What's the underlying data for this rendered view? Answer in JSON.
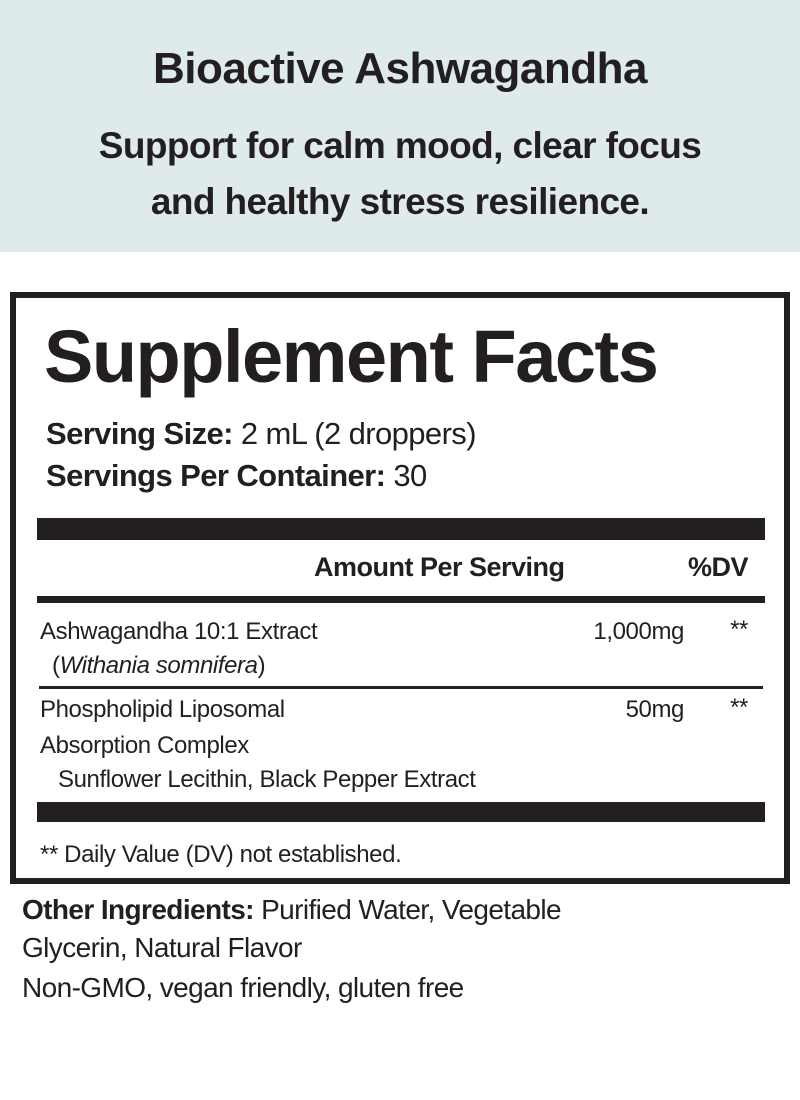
{
  "header": {
    "title": "Bioactive Ashwagandha",
    "subtitle_line1": "Support for calm mood, clear focus",
    "subtitle_line2": "and healthy stress resilience.",
    "background_color": "#dfeaed"
  },
  "facts": {
    "title": "Supplement Facts",
    "serving_size_label": "Serving Size:",
    "serving_size_value": " 2 mL (2 droppers)",
    "servings_label": "Servings Per Container:",
    "servings_value": " 30",
    "col_amount": "Amount Per Serving",
    "col_dv": "%DV",
    "rows": [
      {
        "name": "Ashwagandha 10:1 Extract",
        "sub_open": "(",
        "sub_italic": "Withania somnifera",
        "sub_close": ")",
        "amount": "1,000mg",
        "dv": "**"
      },
      {
        "name": "Phospholipid Liposomal",
        "name2": "Absorption Complex",
        "sub": "Sunflower Lecithin, Black Pepper Extract",
        "amount": "50mg",
        "dv": "**"
      }
    ],
    "footnote": "** Daily Value (DV) not established."
  },
  "other": {
    "label": "Other Ingredients:",
    "value": " Purified Water, Vegetable",
    "line2": "Glycerin, Natural Flavor",
    "line3": "Non-GMO, vegan friendly, gluten free"
  }
}
